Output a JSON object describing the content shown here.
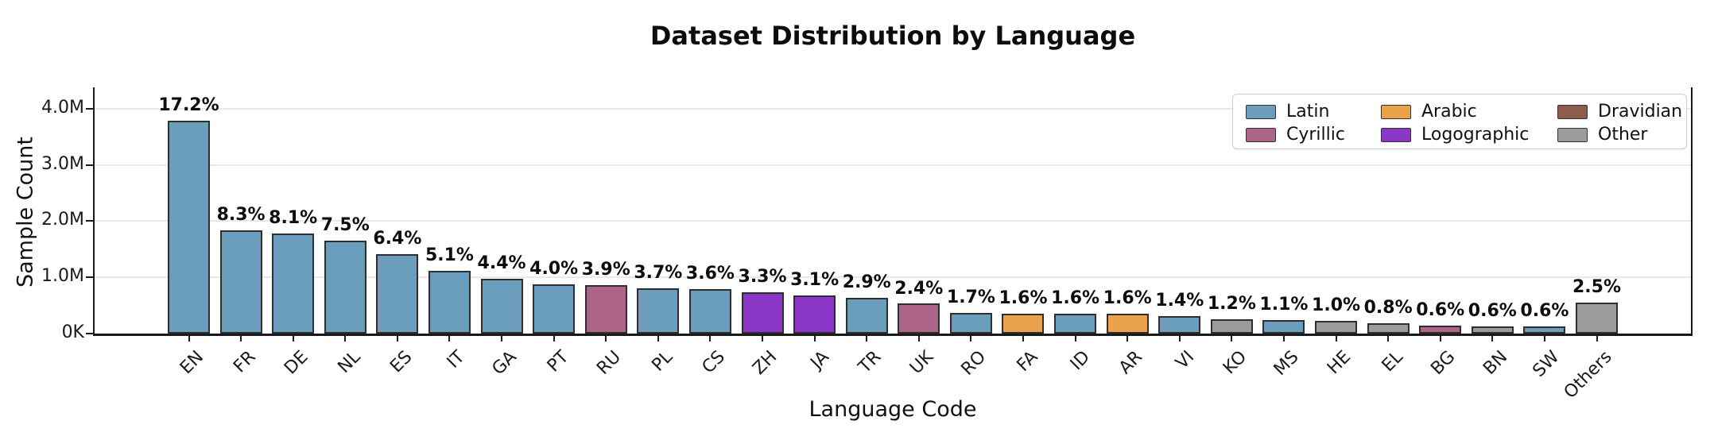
{
  "chart": {
    "title": "Dataset Distribution by Language",
    "xlabel": "Language Code",
    "ylabel": "Sample Count"
  },
  "chart_data": {
    "type": "bar",
    "title": "Dataset Distribution by Language",
    "xlabel": "Language Code",
    "ylabel": "Sample Count",
    "ylim": [
      0,
      4380000
    ],
    "grid": "horizontal",
    "legend_position": "upper right",
    "yticks": [
      {
        "label": "0K",
        "value": 0
      },
      {
        "label": "1.0M",
        "value": 1000000
      },
      {
        "label": "2.0M",
        "value": 2000000
      },
      {
        "label": "3.0M",
        "value": 3000000
      },
      {
        "label": "4.0M",
        "value": 4000000
      }
    ],
    "categories": [
      "EN",
      "FR",
      "DE",
      "NL",
      "ES",
      "IT",
      "GA",
      "PT",
      "RU",
      "PL",
      "CS",
      "ZH",
      "JA",
      "TR",
      "UK",
      "RO",
      "FA",
      "ID",
      "AR",
      "VI",
      "KO",
      "MS",
      "HE",
      "EL",
      "BG",
      "BN",
      "SW",
      "Others"
    ],
    "bars": [
      {
        "code": "EN",
        "value": 3780000,
        "percent": "17.2%",
        "group": "Latin"
      },
      {
        "code": "FR",
        "value": 1830000,
        "percent": "8.3%",
        "group": "Latin"
      },
      {
        "code": "DE",
        "value": 1780000,
        "percent": "8.1%",
        "group": "Latin"
      },
      {
        "code": "NL",
        "value": 1650000,
        "percent": "7.5%",
        "group": "Latin"
      },
      {
        "code": "ES",
        "value": 1410000,
        "percent": "6.4%",
        "group": "Latin"
      },
      {
        "code": "IT",
        "value": 1120000,
        "percent": "5.1%",
        "group": "Latin"
      },
      {
        "code": "GA",
        "value": 970000,
        "percent": "4.4%",
        "group": "Latin"
      },
      {
        "code": "PT",
        "value": 880000,
        "percent": "4.0%",
        "group": "Latin"
      },
      {
        "code": "RU",
        "value": 860000,
        "percent": "3.9%",
        "group": "Cyrillic"
      },
      {
        "code": "PL",
        "value": 810000,
        "percent": "3.7%",
        "group": "Latin"
      },
      {
        "code": "CS",
        "value": 790000,
        "percent": "3.6%",
        "group": "Latin"
      },
      {
        "code": "ZH",
        "value": 730000,
        "percent": "3.3%",
        "group": "Logographic"
      },
      {
        "code": "JA",
        "value": 680000,
        "percent": "3.1%",
        "group": "Logographic"
      },
      {
        "code": "TR",
        "value": 640000,
        "percent": "2.9%",
        "group": "Latin"
      },
      {
        "code": "UK",
        "value": 530000,
        "percent": "2.4%",
        "group": "Cyrillic"
      },
      {
        "code": "RO",
        "value": 370000,
        "percent": "1.7%",
        "group": "Latin"
      },
      {
        "code": "FA",
        "value": 360000,
        "percent": "1.6%",
        "group": "Arabic"
      },
      {
        "code": "ID",
        "value": 350000,
        "percent": "1.6%",
        "group": "Latin"
      },
      {
        "code": "AR",
        "value": 350000,
        "percent": "1.6%",
        "group": "Arabic"
      },
      {
        "code": "VI",
        "value": 310000,
        "percent": "1.4%",
        "group": "Latin"
      },
      {
        "code": "KO",
        "value": 260000,
        "percent": "1.2%",
        "group": "Other"
      },
      {
        "code": "MS",
        "value": 240000,
        "percent": "1.1%",
        "group": "Latin"
      },
      {
        "code": "HE",
        "value": 220000,
        "percent": "1.0%",
        "group": "Other"
      },
      {
        "code": "EL",
        "value": 180000,
        "percent": "0.8%",
        "group": "Other"
      },
      {
        "code": "BG",
        "value": 140000,
        "percent": "0.6%",
        "group": "Cyrillic"
      },
      {
        "code": "BN",
        "value": 130000,
        "percent": "0.6%",
        "group": "Other"
      },
      {
        "code": "SW",
        "value": 130000,
        "percent": "0.6%",
        "group": "Latin"
      },
      {
        "code": "Others",
        "value": 550000,
        "percent": "2.5%",
        "group": "Other"
      }
    ],
    "legend": [
      {
        "label": "Latin",
        "color": "#6B9EBD"
      },
      {
        "label": "Cyrillic",
        "color": "#AC6589"
      },
      {
        "label": "Arabic",
        "color": "#EAA34B"
      },
      {
        "label": "Logographic",
        "color": "#8A37C8"
      },
      {
        "label": "Dravidian",
        "color": "#8E5B4D"
      },
      {
        "label": "Other",
        "color": "#9C9C9C"
      }
    ],
    "group_colors": {
      "Latin": "#6B9EBD",
      "Cyrillic": "#AC6589",
      "Arabic": "#EAA34B",
      "Logographic": "#8A37C8",
      "Dravidian": "#8E5B4D",
      "Other": "#9C9C9C"
    }
  }
}
